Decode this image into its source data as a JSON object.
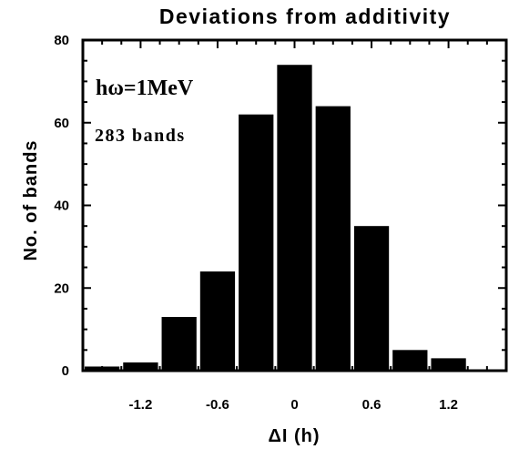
{
  "chart_data": {
    "type": "bar",
    "title": "Deviations from additivity",
    "xlabel": "ΔI (h)",
    "ylabel": "No. of bands",
    "annotations": [
      "hω=1MeV",
      "283 bands"
    ],
    "xlim": [
      -1.65,
      1.65
    ],
    "ylim": [
      0,
      80
    ],
    "bin_width": 0.3,
    "x_ticks": [
      -1.2,
      -0.6,
      0,
      0.6,
      1.2
    ],
    "x_tick_labels": [
      "-1.2",
      "-0.6",
      "0",
      "0.6",
      "1.2"
    ],
    "y_ticks": [
      0,
      20,
      40,
      60,
      80
    ],
    "y_tick_labels": [
      "0",
      "20",
      "40",
      "60",
      "80"
    ],
    "categories": [
      -1.5,
      -1.2,
      -0.9,
      -0.6,
      -0.3,
      0,
      0.3,
      0.6,
      0.9,
      1.2,
      1.5
    ],
    "values": [
      1,
      2,
      13,
      24,
      62,
      74,
      64,
      35,
      5,
      3,
      0
    ]
  }
}
